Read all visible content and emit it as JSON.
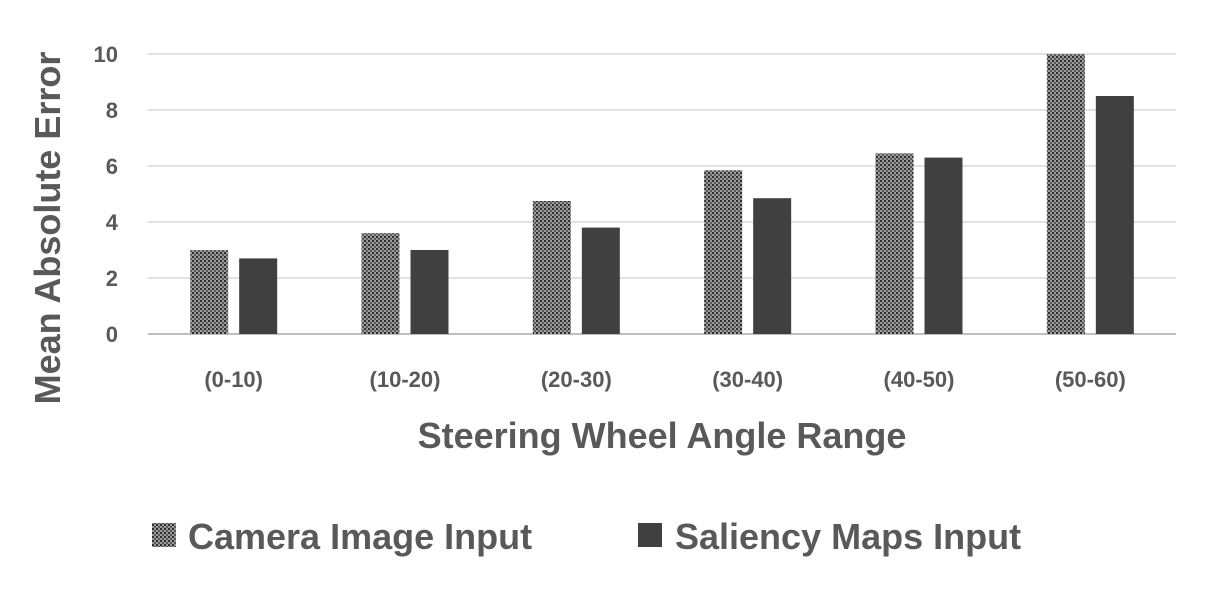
{
  "chart_data": {
    "type": "bar",
    "title": "",
    "xlabel": "Steering Wheel Angle Range",
    "ylabel": "Mean Absolute Error",
    "categories": [
      "(0-10)",
      "(10-20)",
      "(20-30)",
      "(30-40)",
      "(40-50)",
      "(50-60)"
    ],
    "ylim": [
      0,
      10
    ],
    "yticks": [
      0,
      2,
      4,
      6,
      8,
      10
    ],
    "grid": true,
    "legend_position": "bottom",
    "series": [
      {
        "name": "Camera Image Input",
        "values": [
          3.0,
          3.6,
          4.75,
          5.85,
          6.45,
          10.0
        ],
        "color": "#7f7f7f",
        "pattern": "dotted-grey"
      },
      {
        "name": "Saliency Maps Input",
        "values": [
          2.7,
          3.0,
          3.8,
          4.85,
          6.3,
          8.5
        ],
        "color": "#404040",
        "pattern": "solid"
      }
    ]
  }
}
